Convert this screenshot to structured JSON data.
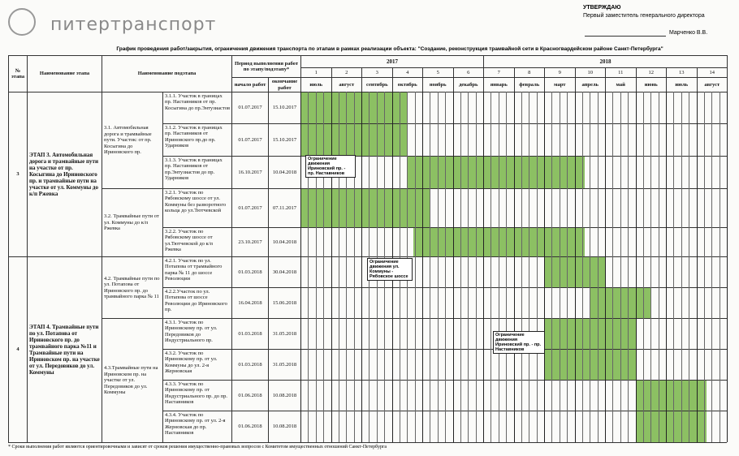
{
  "header": {
    "logo": "питертранспорт",
    "approval": {
      "title": "УТВЕРЖДАЮ",
      "position": "Первый заместитель генерального директора",
      "signatory": "Марченко В.В."
    }
  },
  "title": "График проведения работ/закрытия, ограничения движения транспорта по этапам в рамках реализации объекта: \"Создание, реконструкция трамвайной сети в Красногвардейском районе Санкт-Петербурга\"",
  "table": {
    "columns": {
      "stage_no": "№ этапа",
      "stage_name": "Наименование этапа",
      "substage_name": "Наименование подэтапа",
      "period": "Период выполнения работ по этапу/подэтапу*",
      "start": "начало работ",
      "end": "окончание работ"
    },
    "years": [
      "2017",
      "2018"
    ],
    "month_numbers": [
      1,
      2,
      3,
      4,
      5,
      6,
      7,
      8,
      9,
      10,
      11,
      12,
      13,
      14
    ],
    "month_names": [
      "июль",
      "август",
      "сентябрь",
      "октябрь",
      "ноябрь",
      "декабрь",
      "январь",
      "февраль",
      "март",
      "апрель",
      "май",
      "июнь",
      "июль",
      "август"
    ],
    "stages": [
      {
        "number": 3,
        "name": "ЭТАП 3. Автомобильная дорога и трамвайные пути на участке от пр. Косыгина до Ириновского пр. и трамвайные пути на участке от ул. Коммуны до к/п Ржевка",
        "groups": [
          {
            "name": "3.1. Автомобильная дорога и трамвайные пути. Участок: от пр. Косыгина до Ириновского пр.",
            "items": [
              {
                "name": "3.1.1. Участок в границах пр. Наставников от пр. Косыгина до пр.Энтузиастов",
                "start": "01.07.2017",
                "end": "15.10.2017"
              },
              {
                "name": "3.1.2. Участок в границах пр. Наставников от Ириновского пр.до пр. Ударников",
                "start": "01.07.2017",
                "end": "15.10.2017"
              },
              {
                "name": "3.1.3. Участок в границах пр. Наставников от пр.Энтузиастов до пр. Ударников",
                "start": "16.10.2017",
                "end": "10.04.2018"
              }
            ]
          },
          {
            "name": "3.2. Трамвайные пути от ул. Коммуны до к/п Ржевка",
            "items": [
              {
                "name": "3.2.1. Участок по Рябовскому шоссе от ул. Коммуны без разворотного кольца до ул.Тютчевской",
                "start": "01.07.2017",
                "end": "07.11.2017"
              },
              {
                "name": "3.2.2. Участок по Рябовскому шоссе от ул.Тютчевской до к/п Ржевка",
                "start": "23.10.2017",
                "end": "10.04.2018"
              }
            ]
          }
        ]
      },
      {
        "number": 4,
        "name": "ЭТАП 4. Трамвайные пути по ул. Потапова от Ириновского пр. до трамвайного парка №11 и Трамвайные пути на Ириновском пр. на участке от ул. Передовиков до ул. Коммуны",
        "groups": [
          {
            "name": "4.2. Трамвайные пути по ул. Потапова от Ириновского пр. до трамвайного парка № 11",
            "items": [
              {
                "name": "4.2.1. Участок по ул. Потапова от трамвайного парка № 11 до шоссе Революции",
                "start": "01.03.2018",
                "end": "30.04.2018"
              },
              {
                "name": "4.2.2.Участок по ул. Потапова от шоссе Революции до Ириновского пр.",
                "start": "16.04.2018",
                "end": "15.06.2018"
              }
            ]
          },
          {
            "name": "4.3.Трамвайные пути на Ириновском пр. на участке от ул. Передовиков до ул. Коммуны",
            "items": [
              {
                "name": "4.3.1. Участок по Ириновскому пр. от ул. Передовиков до Индустриального пр.",
                "start": "01.03.2018",
                "end": "31.05.2018"
              },
              {
                "name": "4.3.2. Участок по Ириновскому пр. от ул. Коммуны до ул. 2-я Жерновская",
                "start": "01.03.2018",
                "end": "31.05.2018"
              },
              {
                "name": "4.3.3. Участок по Ириновскому пр. от Индустриального пр. до пр. Наставников",
                "start": "01.06.2018",
                "end": "10.08.2018"
              },
              {
                "name": "4.3.4. Участок по Ириновскому пр. от ул. 2-я Жерновская до пр. Наставников",
                "start": "01.06.2018",
                "end": "10.08.2018"
              }
            ]
          }
        ]
      }
    ]
  },
  "notes": [
    "Ограничение движения Ириновский пр. - пр. Наставников",
    "Ограничение движения ул. Коммуны - Рябовское шоссе",
    "Ограничение движения Ириновский пр. - пр. Наставников"
  ],
  "footnote": "* Сроки выполнения работ являются ориентировочными и зависят от сроков решения имущественно-правовых вопросов с Комитетом имущественных отношений Санкт-Петербурга"
}
